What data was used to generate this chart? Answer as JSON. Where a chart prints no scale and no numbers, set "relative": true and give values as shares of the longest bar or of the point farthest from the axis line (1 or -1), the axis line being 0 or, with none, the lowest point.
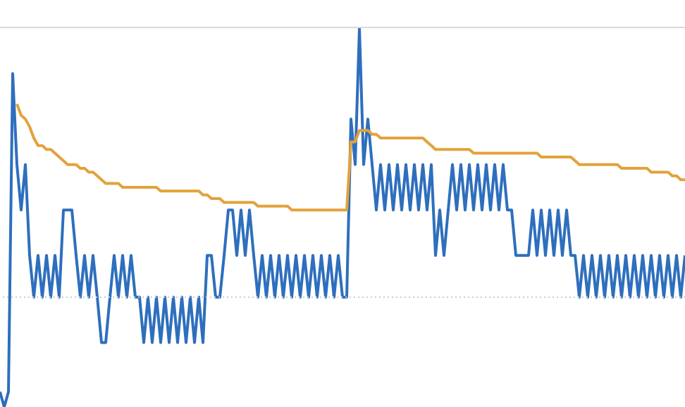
{
  "chart_data": {
    "type": "line",
    "relative": true,
    "categories": [
      null,
      null,
      null,
      null,
      null,
      null,
      null,
      null,
      null,
      null,
      null,
      null,
      null,
      null,
      null,
      null,
      null,
      null,
      null,
      null,
      null,
      null,
      null,
      null,
      null,
      null,
      null,
      null,
      null,
      null,
      null,
      null,
      null,
      null,
      null,
      null,
      null,
      null,
      null,
      null,
      null,
      null,
      null,
      null,
      null,
      null,
      null,
      null,
      null,
      null,
      null,
      null,
      null,
      null,
      null,
      null,
      null,
      null,
      null,
      null,
      null,
      null,
      null,
      null,
      null,
      null,
      null,
      null,
      null,
      null,
      null,
      null,
      null,
      null,
      null,
      null,
      null,
      null,
      null,
      null,
      null,
      null,
      null,
      null,
      null,
      null,
      null,
      null,
      null,
      null,
      null,
      null,
      null,
      null,
      null,
      null,
      null,
      null,
      null,
      null,
      null,
      null,
      null,
      null,
      null,
      null,
      null,
      null,
      null,
      null,
      null,
      null,
      null,
      null,
      null,
      null,
      null,
      null,
      null,
      null,
      null,
      null,
      null,
      null,
      null,
      null,
      null,
      null,
      null,
      null,
      null,
      null,
      null,
      null,
      null,
      null,
      null,
      null,
      null,
      null,
      null,
      null,
      null,
      null,
      null,
      null,
      null,
      null,
      null,
      null,
      null,
      null,
      null,
      null,
      null,
      null,
      null,
      null,
      null,
      null,
      null,
      null,
      null
    ],
    "ref_lines": [
      {
        "axis": "y",
        "value": 0.29,
        "color": "#cccccc",
        "line_style": "dotted"
      }
    ],
    "series": [
      {
        "color": "#2e6fbd",
        "values": [
          0.04,
          0,
          0.04,
          0.88,
          0.64,
          0.52,
          0.64,
          0.4,
          0.29,
          0.4,
          0.29,
          0.4,
          0.29,
          0.4,
          0.29,
          0.52,
          0.52,
          0.52,
          0.4,
          0.29,
          0.4,
          0.29,
          0.4,
          0.29,
          0.17,
          0.17,
          0.29,
          0.4,
          0.29,
          0.4,
          0.29,
          0.4,
          0.29,
          0.29,
          0.17,
          0.29,
          0.17,
          0.29,
          0.17,
          0.29,
          0.17,
          0.29,
          0.17,
          0.29,
          0.17,
          0.29,
          0.17,
          0.29,
          0.17,
          0.4,
          0.4,
          0.29,
          0.29,
          0.4,
          0.52,
          0.52,
          0.4,
          0.52,
          0.4,
          0.52,
          0.4,
          0.29,
          0.4,
          0.29,
          0.4,
          0.29,
          0.4,
          0.29,
          0.4,
          0.29,
          0.4,
          0.29,
          0.4,
          0.29,
          0.4,
          0.29,
          0.4,
          0.29,
          0.4,
          0.29,
          0.4,
          0.29,
          0.29,
          0.76,
          0.64,
          1.0,
          0.64,
          0.76,
          0.64,
          0.52,
          0.64,
          0.52,
          0.64,
          0.52,
          0.64,
          0.52,
          0.64,
          0.52,
          0.64,
          0.52,
          0.64,
          0.52,
          0.64,
          0.4,
          0.52,
          0.4,
          0.52,
          0.64,
          0.52,
          0.64,
          0.52,
          0.64,
          0.52,
          0.64,
          0.52,
          0.64,
          0.52,
          0.64,
          0.52,
          0.64,
          0.52,
          0.52,
          0.4,
          0.4,
          0.4,
          0.4,
          0.52,
          0.4,
          0.52,
          0.4,
          0.52,
          0.4,
          0.52,
          0.4,
          0.52,
          0.4,
          0.4,
          0.29,
          0.4,
          0.29,
          0.4,
          0.29,
          0.4,
          0.29,
          0.4,
          0.29,
          0.4,
          0.29,
          0.4,
          0.29,
          0.4,
          0.29,
          0.4,
          0.29,
          0.4,
          0.29,
          0.4,
          0.29,
          0.4,
          0.29,
          0.4,
          0.29,
          0.4
        ]
      },
      {
        "color": "#e3a23b",
        "values": [
          null,
          null,
          null,
          null,
          0.8,
          0.77,
          0.76,
          0.74,
          0.71,
          0.69,
          0.69,
          0.68,
          0.68,
          0.67,
          0.66,
          0.65,
          0.64,
          0.64,
          0.64,
          0.63,
          0.63,
          0.62,
          0.62,
          0.61,
          0.6,
          0.59,
          0.59,
          0.59,
          0.59,
          0.58,
          0.58,
          0.58,
          0.58,
          0.58,
          0.58,
          0.58,
          0.58,
          0.58,
          0.57,
          0.57,
          0.57,
          0.57,
          0.57,
          0.57,
          0.57,
          0.57,
          0.57,
          0.57,
          0.56,
          0.56,
          0.55,
          0.55,
          0.55,
          0.54,
          0.54,
          0.54,
          0.54,
          0.54,
          0.54,
          0.54,
          0.54,
          0.53,
          0.53,
          0.53,
          0.53,
          0.53,
          0.53,
          0.53,
          0.53,
          0.52,
          0.52,
          0.52,
          0.52,
          0.52,
          0.52,
          0.52,
          0.52,
          0.52,
          0.52,
          0.52,
          0.52,
          0.52,
          0.52,
          0.7,
          0.7,
          0.73,
          0.73,
          0.73,
          0.72,
          0.72,
          0.71,
          0.71,
          0.71,
          0.71,
          0.71,
          0.71,
          0.71,
          0.71,
          0.71,
          0.71,
          0.71,
          0.7,
          0.69,
          0.68,
          0.68,
          0.68,
          0.68,
          0.68,
          0.68,
          0.68,
          0.68,
          0.68,
          0.67,
          0.67,
          0.67,
          0.67,
          0.67,
          0.67,
          0.67,
          0.67,
          0.67,
          0.67,
          0.67,
          0.67,
          0.67,
          0.67,
          0.67,
          0.67,
          0.66,
          0.66,
          0.66,
          0.66,
          0.66,
          0.66,
          0.66,
          0.66,
          0.65,
          0.64,
          0.64,
          0.64,
          0.64,
          0.64,
          0.64,
          0.64,
          0.64,
          0.64,
          0.64,
          0.63,
          0.63,
          0.63,
          0.63,
          0.63,
          0.63,
          0.63,
          0.62,
          0.62,
          0.62,
          0.62,
          0.62,
          0.61,
          0.61,
          0.6,
          0.6
        ]
      }
    ]
  }
}
